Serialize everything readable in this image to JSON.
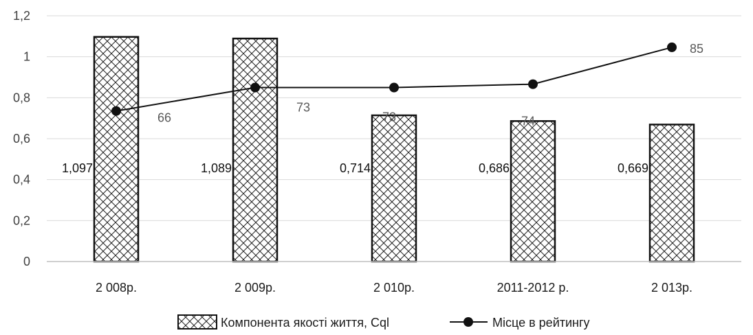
{
  "chart_data": {
    "type": "bar",
    "categories": [
      "2 008р.",
      "2 009р.",
      "2 010р.",
      "2011-2012 р.",
      "2 013р."
    ],
    "ylim": [
      0,
      1.2
    ],
    "yticks": [
      "0",
      "0,2",
      "0,4",
      "0,6",
      "0,8",
      "1",
      "1,2"
    ],
    "grid": true,
    "legend_position": "bottom",
    "series": [
      {
        "name": "Компонента якості життя, Cql",
        "kind": "bar",
        "pattern": "crosshatch",
        "values": [
          1.097,
          1.089,
          0.714,
          0.686,
          0.669
        ],
        "labels": [
          "1,097",
          "1,089",
          "0,714",
          "0,686",
          "0,669"
        ]
      },
      {
        "name": "Місце в рейтингу",
        "kind": "line",
        "values": [
          66,
          73,
          73,
          74,
          85
        ],
        "labels": [
          "66",
          "73",
          "73",
          "74",
          "85"
        ]
      }
    ],
    "colors": {
      "bar_stroke": "#111111",
      "line": "#111111",
      "grid": "#d9d9d9",
      "axis": "#bfbfbf"
    }
  }
}
